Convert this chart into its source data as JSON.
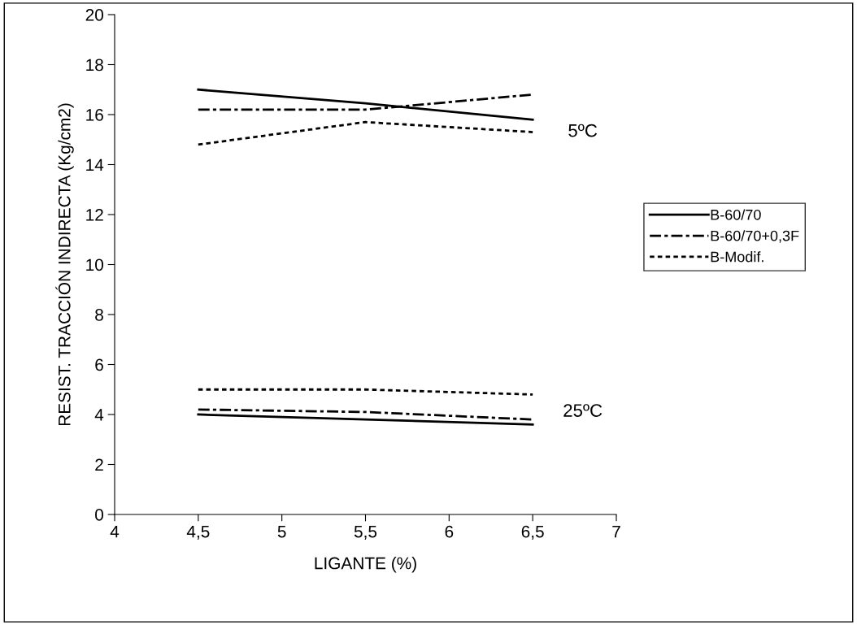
{
  "chart_data": {
    "type": "line",
    "xlabel": "LIGANTE (%)",
    "ylabel": "RESIST. TRACCIÓN INDIRECTA (Kg/cm2)",
    "x": [
      4.5,
      5.5,
      6.5
    ],
    "series": [
      {
        "name": "B-60/70",
        "color": "#000000",
        "line_style": "solid",
        "values": [
          17.0,
          16.45,
          15.8
        ]
      },
      {
        "name": "B-60/70+0,3F",
        "color": "#000000",
        "line_style": "dashdot",
        "values": [
          16.2,
          16.2,
          16.8
        ]
      },
      {
        "name": "B-Modif.",
        "color": "#000000",
        "line_style": "dotted",
        "values": [
          14.8,
          15.7,
          15.3
        ]
      },
      {
        "color": "#000000",
        "line_style": "solid",
        "values": [
          4.0,
          3.8,
          3.6
        ]
      },
      {
        "color": "#000000",
        "line_style": "dashdot",
        "values": [
          4.2,
          4.1,
          3.8
        ]
      },
      {
        "color": "#000000",
        "line_style": "dotted",
        "values": [
          5.0,
          5.0,
          4.8
        ]
      }
    ],
    "annotations": [
      "5ºC",
      "25ºC"
    ],
    "xlim": [
      4,
      7
    ],
    "xticks": [
      4,
      {
        "value": 4.5,
        "label": "4,5"
      },
      5,
      {
        "value": 5.5,
        "label": "5,5"
      },
      6,
      {
        "value": 6.5,
        "label": "6,5"
      },
      7
    ],
    "ylim": [
      0,
      20
    ],
    "yticks": [
      0,
      2,
      4,
      6,
      8,
      10,
      12,
      14,
      16,
      18,
      20
    ],
    "grid": false,
    "marker": "none",
    "legend": "right"
  }
}
